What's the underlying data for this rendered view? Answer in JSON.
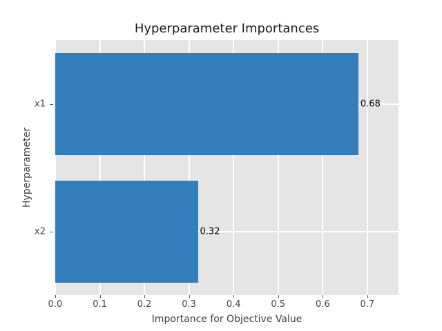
{
  "chart_data": {
    "type": "bar",
    "orientation": "horizontal",
    "title": "Hyperparameter Importances",
    "xlabel": "Importance for Objective Value",
    "ylabel": "Hyperparameter",
    "categories": [
      "x1",
      "x2"
    ],
    "values": [
      0.68,
      0.32
    ],
    "value_labels": [
      "0.68",
      "0.32"
    ],
    "xticks": [
      0.0,
      0.1,
      0.2,
      0.3,
      0.4,
      0.5,
      0.6,
      0.7
    ],
    "xtick_labels": [
      "0.0",
      "0.1",
      "0.2",
      "0.3",
      "0.4",
      "0.5",
      "0.6",
      "0.7"
    ],
    "xlim": [
      0,
      0.77
    ],
    "grid": true,
    "legend": "none",
    "bar_fraction": 0.8,
    "colors": {
      "bar": "#347ebb",
      "figure_bg": "#ffffff",
      "plot_bg": "#e5e5e5",
      "grid": "#ffffff",
      "tick_text": "#444444",
      "axis_label_text": "#3d3d3d",
      "title_text": "#1a1a1a",
      "value_text": "#000000",
      "tick_mark": "#555555"
    }
  }
}
